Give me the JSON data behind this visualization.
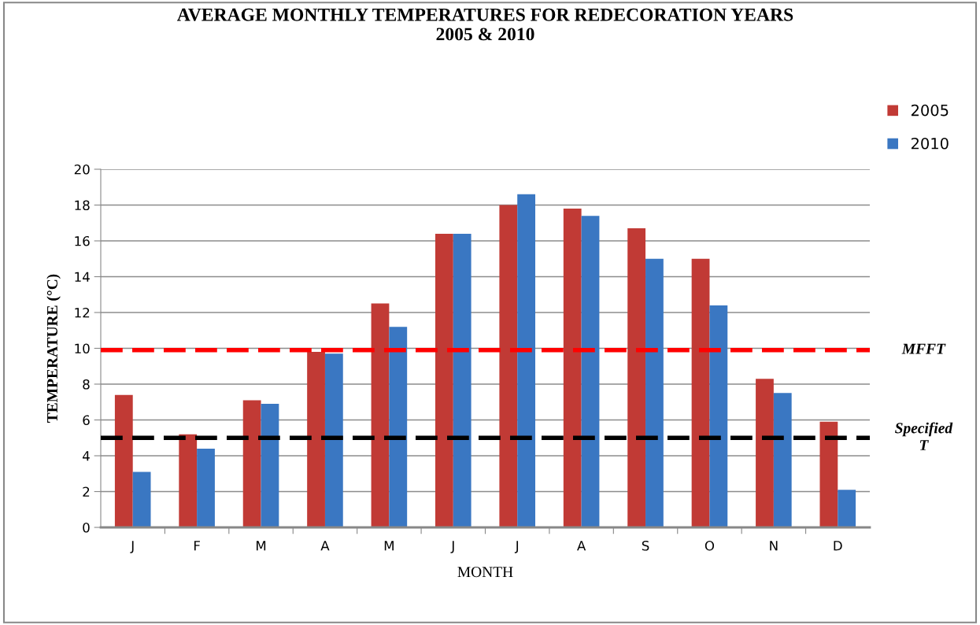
{
  "chart_data": {
    "type": "bar",
    "title": "AVERAGE MONTHLY TEMPERATURES FOR REDECORATION YEARS\n2005 & 2010",
    "xlabel": "MONTH",
    "ylabel": "TEMPERATURE (°C)",
    "categories": [
      "J",
      "F",
      "M",
      "A",
      "M",
      "J",
      "J",
      "A",
      "S",
      "O",
      "N",
      "D"
    ],
    "series": [
      {
        "name": "2005",
        "color": "#c13a35",
        "values": [
          7.4,
          5.2,
          7.1,
          9.8,
          12.5,
          16.4,
          18.0,
          17.8,
          16.7,
          15.0,
          8.3,
          5.9
        ]
      },
      {
        "name": "2010",
        "color": "#3a77c2",
        "values": [
          3.1,
          4.4,
          6.9,
          9.7,
          11.2,
          16.4,
          18.6,
          17.4,
          15.0,
          12.4,
          7.5,
          2.1
        ]
      }
    ],
    "ylim": [
      0,
      20
    ],
    "yticks": [
      0,
      2,
      4,
      6,
      8,
      10,
      12,
      14,
      16,
      18,
      20
    ],
    "grid": "y",
    "legend": "top right",
    "ref_lines": [
      {
        "axis": "y",
        "value": 9.9,
        "label": "MFFT",
        "color": "#ff0000",
        "line_style": "dashed"
      },
      {
        "axis": "y",
        "value": 5,
        "label": "Specified\nT",
        "color": "#000000",
        "line_style": "dashed"
      }
    ]
  }
}
